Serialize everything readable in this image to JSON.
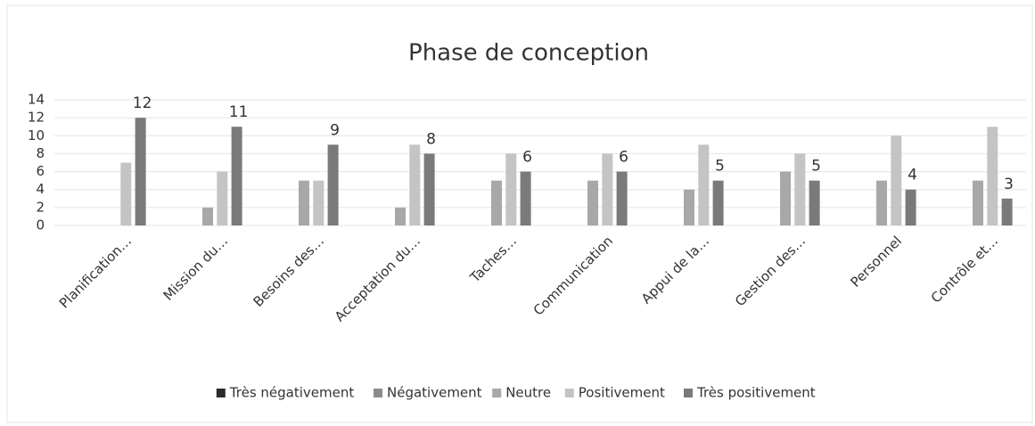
{
  "chart_data": {
    "type": "bar",
    "title": "Phase de conception",
    "categories": [
      "Planification…",
      "Mission du…",
      "Besoins des…",
      "Acceptation du…",
      "Taches…",
      "Communication",
      "Appui de la…",
      "Gestion des…",
      "Personnel",
      "Contrôle et…"
    ],
    "series": [
      {
        "name": "Très négativement",
        "color": "#2b2b2b",
        "values": [
          0,
          0,
          0,
          0,
          0,
          0,
          0,
          0,
          0,
          0
        ]
      },
      {
        "name": "Négativement",
        "color": "#8c8c8c",
        "values": [
          0,
          0,
          0,
          0,
          0,
          0,
          0,
          0,
          0,
          0
        ]
      },
      {
        "name": "Neutre",
        "color": "#a8a8a8",
        "values": [
          0,
          2,
          5,
          2,
          5,
          5,
          4,
          6,
          5,
          5
        ]
      },
      {
        "name": "Positivement",
        "color": "#c4c4c4",
        "values": [
          7,
          6,
          5,
          9,
          8,
          8,
          9,
          8,
          10,
          11
        ]
      },
      {
        "name": "Très positivement",
        "color": "#7a7a7a",
        "values": [
          12,
          11,
          9,
          8,
          6,
          6,
          5,
          5,
          4,
          3
        ],
        "labels": true
      }
    ],
    "ylim": [
      0,
      14
    ],
    "yticks": [
      0,
      2,
      4,
      6,
      8,
      10,
      12,
      14
    ],
    "grid": true,
    "legend": "bottom"
  }
}
